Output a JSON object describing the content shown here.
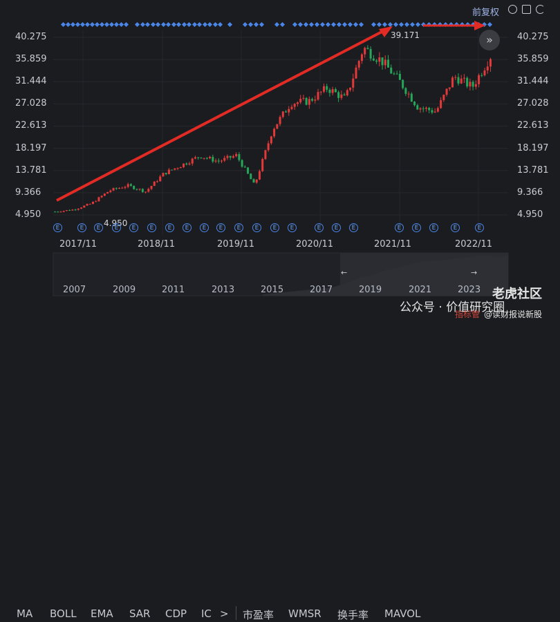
{
  "header": {
    "adjust_label": "前复权",
    "icons": [
      "minus-circle-icon",
      "square-icon",
      "refresh-icon"
    ]
  },
  "price_chart": {
    "y_labels": [
      "40.275",
      "35.859",
      "31.444",
      "27.028",
      "22.613",
      "18.197",
      "13.781",
      "9.366",
      "4.950"
    ],
    "x_labels": [
      "2017/11",
      "2018/11",
      "2019/11",
      "2020/11",
      "2021/11",
      "2022/11"
    ],
    "high_label": "39.171",
    "low_label": "4.950",
    "nav_symbol": "»",
    "event_badge_text": "E",
    "colors": {
      "up": "#e23a3a",
      "down": "#26a659",
      "arrow": "#e22b24",
      "marker": "#4a86e8"
    }
  },
  "overview": {
    "year_labels": [
      "2007",
      "2009",
      "2011",
      "2013",
      "2015",
      "2017",
      "2019",
      "2021",
      "2023"
    ]
  },
  "indicator_tabs": [
    "MA",
    "BOLL",
    "EMA",
    "SAR",
    "CDP",
    "IC",
    ">",
    "市盈率",
    "WMSR",
    "换手率",
    "MAVOL"
  ],
  "watermarks": {
    "site": "老虎社区",
    "account": "公众号 · 价值研究圈",
    "credit": "@读财报说新股",
    "indicator_setting": "指标管"
  },
  "chart_data": {
    "type": "candlestick",
    "title": "",
    "x_ticks": [
      "2017/11",
      "2018/11",
      "2019/11",
      "2020/11",
      "2021/11",
      "2022/11"
    ],
    "y_ticks": [
      40.275,
      35.859,
      31.444,
      27.028,
      22.613,
      18.197,
      13.781,
      9.366,
      4.95
    ],
    "ylim": [
      4.95,
      40.275
    ],
    "annotations": {
      "max": 39.171,
      "min": 4.95
    },
    "close_series": {
      "x": [
        "2017-08",
        "2017-11",
        "2018-02",
        "2018-05",
        "2018-08",
        "2018-11",
        "2019-02",
        "2019-05",
        "2019-08",
        "2019-11",
        "2020-01",
        "2020-03",
        "2020-06",
        "2020-08",
        "2020-11",
        "2021-01",
        "2021-03",
        "2021-05",
        "2021-08",
        "2021-11",
        "2022-02",
        "2022-05",
        "2022-08",
        "2022-11",
        "2023-01"
      ],
      "values": [
        5.6,
        6.0,
        7.2,
        9.8,
        10.8,
        9.6,
        13.2,
        14.9,
        16.7,
        15.6,
        16.8,
        10.8,
        22.0,
        27.2,
        27.6,
        30.2,
        28.0,
        38.2,
        35.6,
        31.5,
        26.4,
        25.5,
        32.5,
        30.4,
        36.5
      ]
    }
  }
}
